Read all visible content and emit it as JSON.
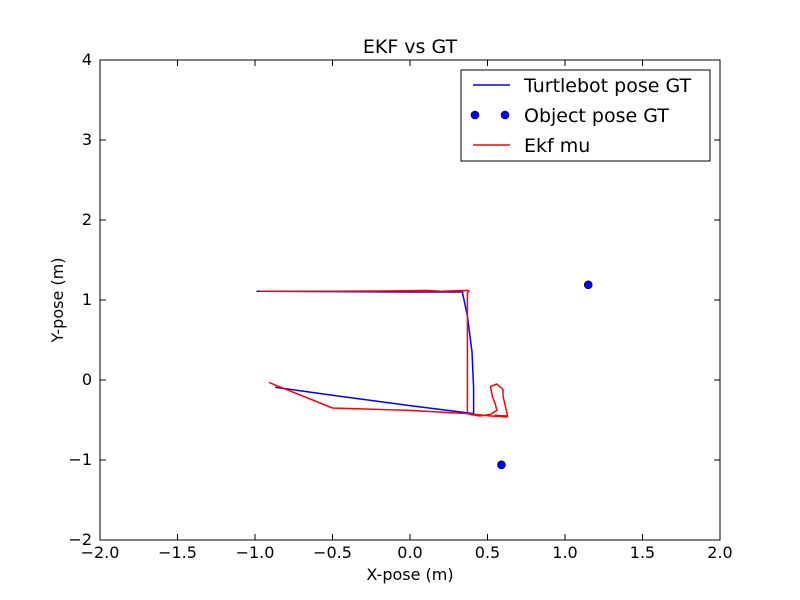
{
  "chart_data": {
    "type": "line",
    "title": "EKF vs GT",
    "xlabel": "X-pose (m)",
    "ylabel": "Y-pose (m)",
    "xlim": [
      -2.0,
      2.0
    ],
    "ylim": [
      -2,
      4
    ],
    "xticks": [
      -2.0,
      -1.5,
      -1.0,
      -0.5,
      0.0,
      0.5,
      1.0,
      1.5,
      2.0
    ],
    "xtick_labels": [
      "−2.0",
      "−1.5",
      "−1.0",
      "−0.5",
      "0.0",
      "0.5",
      "1.0",
      "1.5",
      "2.0"
    ],
    "yticks": [
      -2,
      -1,
      0,
      1,
      2,
      3,
      4
    ],
    "ytick_labels": [
      "−2",
      "−1",
      "0",
      "1",
      "2",
      "3",
      "4"
    ],
    "grid": false,
    "legend_position": "top-right",
    "series": [
      {
        "name": "Turtlebot pose GT",
        "kind": "line",
        "color": "#0000ff",
        "x": [
          -0.99,
          -0.5,
          0.0,
          0.34,
          0.34,
          0.37,
          0.4,
          0.41,
          0.41,
          0.0,
          -0.5,
          -0.87
        ],
        "y": [
          1.11,
          1.105,
          1.1,
          1.1,
          1.08,
          0.8,
          0.35,
          -0.1,
          -0.42,
          -0.32,
          -0.19,
          -0.09
        ]
      },
      {
        "name": "Object pose GT",
        "kind": "scatter",
        "color": "#0000ff",
        "x": [
          1.15,
          0.59
        ],
        "y": [
          1.19,
          -1.06
        ]
      },
      {
        "name": "Ekf mu",
        "kind": "line",
        "color": "#ff0000",
        "x": [
          -0.97,
          -0.5,
          0.0,
          0.1,
          0.2,
          0.37,
          0.38,
          0.37,
          0.37,
          0.37,
          0.39,
          0.45,
          0.52,
          0.56,
          0.55,
          0.53,
          0.52,
          0.56,
          0.6,
          0.6,
          0.63,
          0.55,
          0.6,
          0.63,
          0.52,
          0.37,
          0.0,
          -0.5,
          -0.91
        ],
        "y": [
          1.11,
          1.11,
          1.115,
          1.12,
          1.11,
          1.12,
          1.11,
          1.09,
          0.5,
          -0.42,
          -0.43,
          -0.45,
          -0.43,
          -0.38,
          -0.3,
          -0.2,
          -0.08,
          -0.05,
          -0.12,
          -0.2,
          -0.45,
          -0.44,
          -0.46,
          -0.46,
          -0.45,
          -0.42,
          -0.38,
          -0.35,
          -0.03
        ]
      }
    ]
  }
}
